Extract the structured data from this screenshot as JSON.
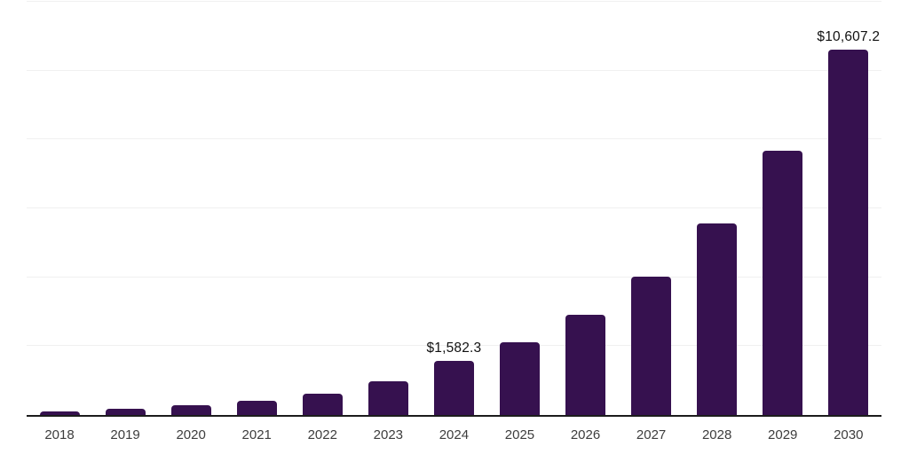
{
  "chart_data": {
    "type": "bar",
    "title": "",
    "xlabel": "",
    "ylabel": "",
    "categories": [
      "2018",
      "2019",
      "2020",
      "2021",
      "2022",
      "2023",
      "2024",
      "2025",
      "2026",
      "2027",
      "2028",
      "2029",
      "2030"
    ],
    "values": [
      110,
      170,
      280,
      410,
      630,
      990,
      1582.3,
      2110,
      2910,
      4020,
      5560,
      7680,
      10607.2
    ],
    "value_labels": {
      "2024": "$1,582.3",
      "2030": "$10,607.2"
    },
    "ylim": [
      0,
      12000
    ],
    "gridline_step": 2000,
    "grid": "horizontal",
    "y_tick_labels_visible": false,
    "legend": "none"
  },
  "colors": {
    "bar": "#36114f",
    "axis_line": "#1c1c1c",
    "gridline": "#f0f0f0",
    "x_tick_label": "#3d3d3d",
    "data_label": "#111111",
    "background": "#ffffff"
  }
}
